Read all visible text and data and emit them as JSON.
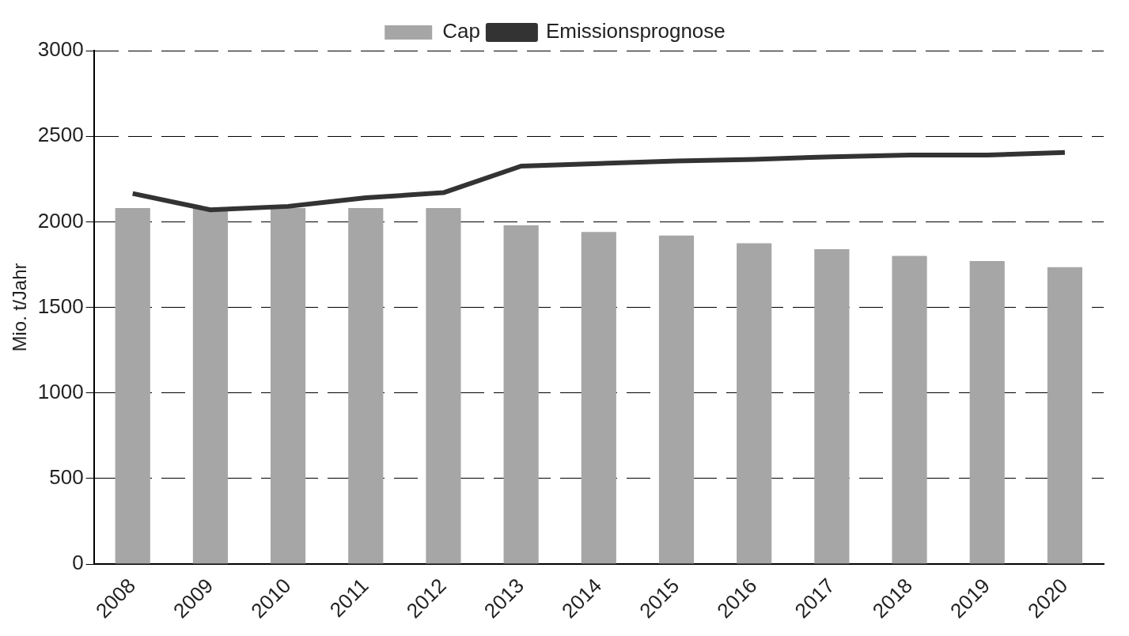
{
  "chart_data": {
    "type": "bar",
    "ylabel": "Mio. t/Jahr",
    "categories": [
      "2008",
      "2009",
      "2010",
      "2011",
      "2012",
      "2013",
      "2014",
      "2015",
      "2016",
      "2017",
      "2018",
      "2019",
      "2020"
    ],
    "series": [
      {
        "name": "Cap",
        "color": "#a6a6a6",
        "values": [
          2080,
          2080,
          2080,
          2080,
          2080,
          1980,
          1940,
          1920,
          1875,
          1840,
          1800,
          1770,
          1735
        ]
      },
      {
        "name": "Emissionsprognose",
        "type": "line",
        "color": "#333333",
        "values": [
          2165,
          2070,
          2090,
          2140,
          2170,
          2325,
          2340,
          2355,
          2365,
          2380,
          2390,
          2390,
          2405
        ]
      }
    ],
    "ylim": [
      0,
      3000
    ],
    "yticks": [
      0,
      500,
      1000,
      1500,
      2000,
      2500,
      3000
    ],
    "grid": "y",
    "legend": "top",
    "marker": "none",
    "line_style": "solid"
  }
}
